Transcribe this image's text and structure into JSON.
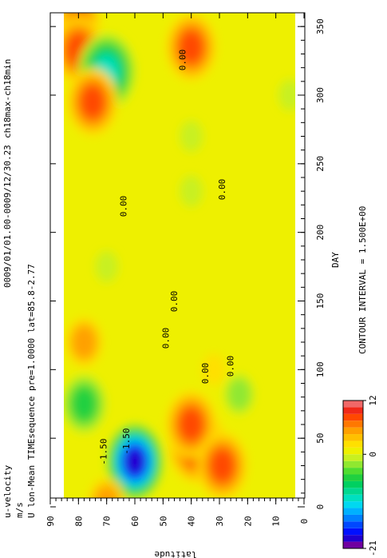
{
  "chart_data": {
    "type": "heatmap",
    "header": {
      "dataset": "ch18max-ch18min",
      "period": "0009/01/01.00-0009/12/30.23",
      "description": "U lon-Mean TIMEsequence pre=1.0000 lat=85.8-2.77",
      "variable": "u-velocity",
      "units": "m/s"
    },
    "xlabel": "DAY",
    "ylabel": "latitude",
    "xlim": [
      0,
      360
    ],
    "ylim": [
      0,
      90
    ],
    "x_ticks": [
      "0",
      "50",
      "100",
      "150",
      "200",
      "250",
      "300",
      "350"
    ],
    "x_tick_values": [
      0,
      50,
      100,
      150,
      200,
      250,
      300,
      350
    ],
    "y_ticks": [
      "0",
      "10",
      "20",
      "30",
      "40",
      "50",
      "60",
      "70",
      "80",
      "90"
    ],
    "y_tick_values": [
      0,
      10,
      20,
      30,
      40,
      50,
      60,
      70,
      80,
      90
    ],
    "contour_interval_label": "CONTOUR INTERVAL = 1.500E+00",
    "colorbar": {
      "min": -21,
      "max": 12,
      "tick_labels": [
        "-21",
        "0",
        "12"
      ],
      "tick_values": [
        -21,
        0,
        12
      ],
      "levels": [
        -21,
        -19.5,
        -18,
        -16.5,
        -15,
        -13.5,
        -12,
        -10.5,
        -9,
        -7.5,
        -6,
        -4.5,
        -3,
        -1.5,
        0,
        1.5,
        3,
        4.5,
        6,
        7.5,
        9,
        10.5,
        12
      ],
      "colors": [
        "#7000a0",
        "#2000d0",
        "#0010ff",
        "#0048ff",
        "#0080ff",
        "#00b0ff",
        "#00d8f0",
        "#00e0c0",
        "#00d890",
        "#00d060",
        "#20d040",
        "#50dd30",
        "#90e830",
        "#c8f020",
        "#eef000",
        "#ffe000",
        "#ffc000",
        "#ffa000",
        "#ff7800",
        "#ff4800",
        "#f02818",
        "#f06868",
        "#f8a0a0"
      ]
    },
    "contour_labels": [
      "-1.50",
      "-1.50",
      "0.00",
      "0.00",
      "0.00",
      "0.00",
      "0.00",
      "0.00",
      "0.00"
    ],
    "features": [
      {
        "day": 355,
        "lat": 80,
        "value": 6
      },
      {
        "day": 333,
        "lat": 80,
        "value": 7
      },
      {
        "day": 335,
        "lat": 40,
        "value": 8
      },
      {
        "day": 317,
        "lat": 70,
        "value": -11
      },
      {
        "day": 295,
        "lat": 75,
        "value": 7
      },
      {
        "day": 120,
        "lat": 78,
        "value": 4
      },
      {
        "day": 75,
        "lat": 78,
        "value": -6
      },
      {
        "day": 33,
        "lat": 60,
        "value": -20
      },
      {
        "day": 45,
        "lat": 38,
        "value": 9
      },
      {
        "day": 60,
        "lat": 40,
        "value": 8
      },
      {
        "day": 30,
        "lat": 29,
        "value": 7
      },
      {
        "day": 3,
        "lat": 70,
        "value": 4
      },
      {
        "day": 270,
        "lat": 40,
        "value": -1.8
      },
      {
        "day": 175,
        "lat": 70,
        "value": -1.6
      },
      {
        "day": 230,
        "lat": 40,
        "value": -1.7
      },
      {
        "day": 82,
        "lat": 23,
        "value": -2.5
      },
      {
        "day": 100,
        "lat": 32,
        "value": 1.4
      },
      {
        "day": 300,
        "lat": 5,
        "value": -1.6
      }
    ]
  }
}
